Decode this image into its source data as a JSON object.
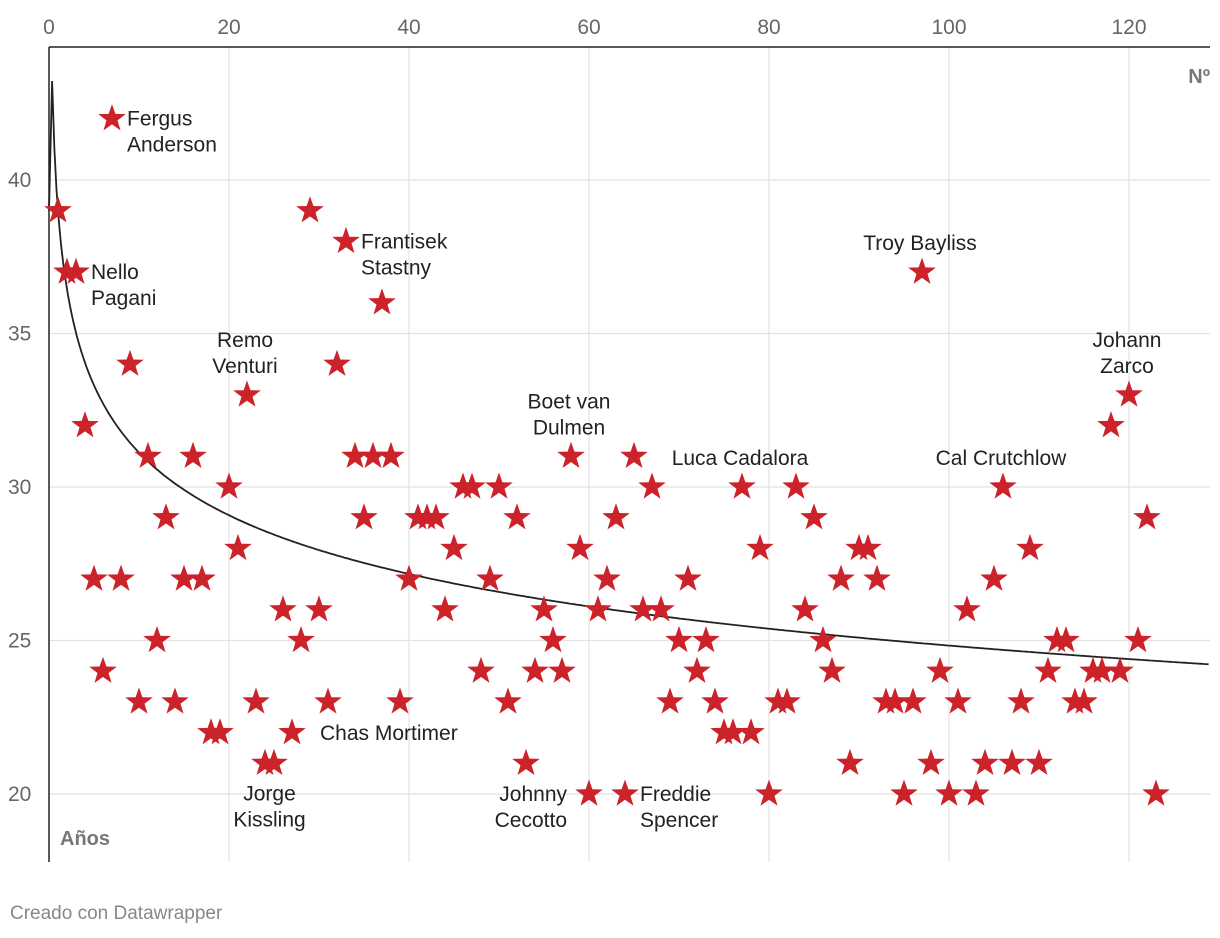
{
  "chart_data": {
    "type": "scatter",
    "title": "",
    "xlabel": "Nº",
    "ylabel": "Años",
    "xlim": [
      0,
      129
    ],
    "ylim": [
      18,
      45
    ],
    "x_ticks": [
      0,
      20,
      40,
      60,
      80,
      100,
      120
    ],
    "y_ticks": [
      20,
      25,
      30,
      35,
      40
    ],
    "marker": "star",
    "marker_color": "#cc2229",
    "trend_color": "#222222",
    "points": [
      [
        1,
        39
      ],
      [
        2,
        37
      ],
      [
        3,
        37
      ],
      [
        4,
        32
      ],
      [
        5,
        27
      ],
      [
        6,
        24
      ],
      [
        7,
        42
      ],
      [
        8,
        27
      ],
      [
        9,
        34
      ],
      [
        10,
        23
      ],
      [
        11,
        31
      ],
      [
        12,
        25
      ],
      [
        13,
        29
      ],
      [
        14,
        23
      ],
      [
        15,
        27
      ],
      [
        16,
        31
      ],
      [
        17,
        27
      ],
      [
        18,
        22
      ],
      [
        19,
        22
      ],
      [
        20,
        30
      ],
      [
        21,
        28
      ],
      [
        22,
        33
      ],
      [
        23,
        23
      ],
      [
        24,
        21
      ],
      [
        25,
        21
      ],
      [
        26,
        26
      ],
      [
        27,
        22
      ],
      [
        28,
        25
      ],
      [
        29,
        39
      ],
      [
        30,
        26
      ],
      [
        31,
        23
      ],
      [
        32,
        34
      ],
      [
        33,
        38
      ],
      [
        34,
        31
      ],
      [
        35,
        29
      ],
      [
        36,
        31
      ],
      [
        37,
        36
      ],
      [
        38,
        31
      ],
      [
        39,
        23
      ],
      [
        40,
        27
      ],
      [
        41,
        29
      ],
      [
        42,
        29
      ],
      [
        43,
        29
      ],
      [
        44,
        26
      ],
      [
        45,
        28
      ],
      [
        46,
        30
      ],
      [
        47,
        30
      ],
      [
        48,
        24
      ],
      [
        49,
        27
      ],
      [
        50,
        30
      ],
      [
        51,
        23
      ],
      [
        52,
        29
      ],
      [
        53,
        21
      ],
      [
        54,
        24
      ],
      [
        55,
        26
      ],
      [
        56,
        25
      ],
      [
        57,
        24
      ],
      [
        58,
        31
      ],
      [
        59,
        28
      ],
      [
        60,
        20
      ],
      [
        61,
        26
      ],
      [
        62,
        27
      ],
      [
        63,
        29
      ],
      [
        64,
        20
      ],
      [
        65,
        31
      ],
      [
        66,
        26
      ],
      [
        67,
        30
      ],
      [
        68,
        26
      ],
      [
        69,
        23
      ],
      [
        70,
        25
      ],
      [
        71,
        27
      ],
      [
        72,
        24
      ],
      [
        73,
        25
      ],
      [
        74,
        23
      ],
      [
        75,
        22
      ],
      [
        76,
        22
      ],
      [
        77,
        30
      ],
      [
        78,
        22
      ],
      [
        79,
        28
      ],
      [
        80,
        20
      ],
      [
        81,
        23
      ],
      [
        82,
        23
      ],
      [
        83,
        30
      ],
      [
        84,
        26
      ],
      [
        85,
        29
      ],
      [
        86,
        25
      ],
      [
        87,
        24
      ],
      [
        88,
        27
      ],
      [
        89,
        21
      ],
      [
        90,
        28
      ],
      [
        91,
        28
      ],
      [
        92,
        27
      ],
      [
        93,
        23
      ],
      [
        94,
        23
      ],
      [
        96,
        23
      ],
      [
        95,
        20
      ],
      [
        97,
        37
      ],
      [
        98,
        21
      ],
      [
        99,
        24
      ],
      [
        100,
        20
      ],
      [
        101,
        23
      ],
      [
        102,
        26
      ],
      [
        103,
        20
      ],
      [
        104,
        21
      ],
      [
        105,
        27
      ],
      [
        106,
        30
      ],
      [
        107,
        21
      ],
      [
        108,
        23
      ],
      [
        109,
        28
      ],
      [
        110,
        21
      ],
      [
        111,
        24
      ],
      [
        112,
        25
      ],
      [
        113,
        25
      ],
      [
        114,
        23
      ],
      [
        115,
        23
      ],
      [
        116,
        24
      ],
      [
        117,
        24
      ],
      [
        118,
        32
      ],
      [
        119,
        24
      ],
      [
        120,
        33
      ],
      [
        121,
        25
      ],
      [
        122,
        29
      ],
      [
        123,
        20
      ]
    ],
    "trend": {
      "type": "power",
      "a": 39,
      "b": -0.098
    },
    "annotations": [
      {
        "x": 7,
        "y": 42,
        "lines": [
          "Fergus",
          "Anderson"
        ],
        "anchor": "right"
      },
      {
        "x": 3,
        "y": 37,
        "lines": [
          "Nello",
          "Pagani"
        ],
        "anchor": "right"
      },
      {
        "x": 33,
        "y": 38,
        "lines": [
          "Frantisek",
          "Stastny"
        ],
        "anchor": "right"
      },
      {
        "x": 22,
        "y": 33,
        "lines": [
          "Remo",
          "Venturi"
        ],
        "anchor": "above"
      },
      {
        "x": 24.5,
        "y": 21,
        "lines": [
          "Jorge",
          "Kissling"
        ],
        "anchor": "below"
      },
      {
        "x": 31,
        "y": 23,
        "lines": [
          "Chas Mortimer"
        ],
        "anchor": "below-right"
      },
      {
        "x": 58,
        "y": 31,
        "lines": [
          "Boet van",
          "Dulmen"
        ],
        "anchor": "above"
      },
      {
        "x": 60,
        "y": 20,
        "lines": [
          "Johnny",
          "Cecotto"
        ],
        "anchor": "left"
      },
      {
        "x": 64,
        "y": 20,
        "lines": [
          "Freddie",
          "Spencer"
        ],
        "anchor": "right"
      },
      {
        "x": 77,
        "y": 30,
        "lines": [
          "Luca Cadalora"
        ],
        "anchor": "above"
      },
      {
        "x": 97,
        "y": 37,
        "lines": [
          "Troy Bayliss"
        ],
        "anchor": "above"
      },
      {
        "x": 106,
        "y": 30,
        "lines": [
          "Cal Crutchlow"
        ],
        "anchor": "above"
      },
      {
        "x": 120,
        "y": 33,
        "lines": [
          "Johann",
          "Zarco"
        ],
        "anchor": "above"
      }
    ]
  },
  "footer": {
    "credit": "Creado con Datawrapper"
  }
}
